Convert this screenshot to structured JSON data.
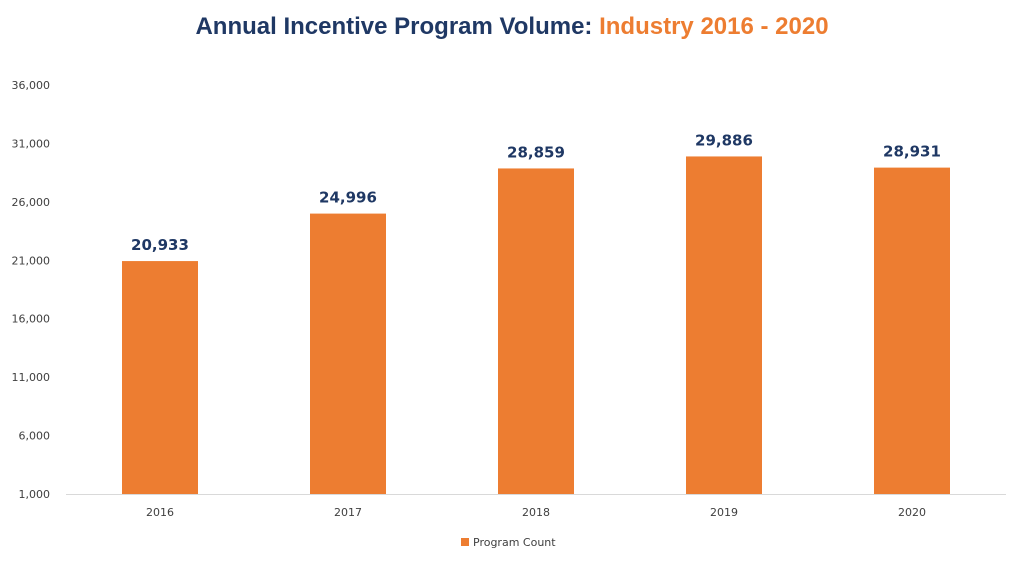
{
  "chart_data": {
    "type": "bar",
    "title": "Annual Incentive Program Volume: ",
    "title_accent": "Industry 2016 - 2020",
    "categories": [
      "2016",
      "2017",
      "2018",
      "2019",
      "2020"
    ],
    "series": [
      {
        "name": "Program Count",
        "values": [
          20933,
          24996,
          28859,
          29886,
          28931
        ],
        "color": "#ed7d31"
      }
    ],
    "data_labels": [
      "20,933",
      "24,996",
      "28,859",
      "29,886",
      "28,931"
    ],
    "y_ticks": [
      1000,
      6000,
      11000,
      16000,
      21000,
      26000,
      31000,
      36000
    ],
    "y_tick_labels": [
      "1,000",
      "6,000",
      "11,000",
      "16,000",
      "21,000",
      "26,000",
      "31,000",
      "36,000"
    ],
    "ylim": [
      1000,
      36000
    ],
    "grid": false,
    "legend_position": "bottom",
    "colors": {
      "title_main": "#1f3864",
      "title_accent": "#ed7d31",
      "data_label": "#1f3864",
      "axis": "#d9d9d9"
    }
  }
}
